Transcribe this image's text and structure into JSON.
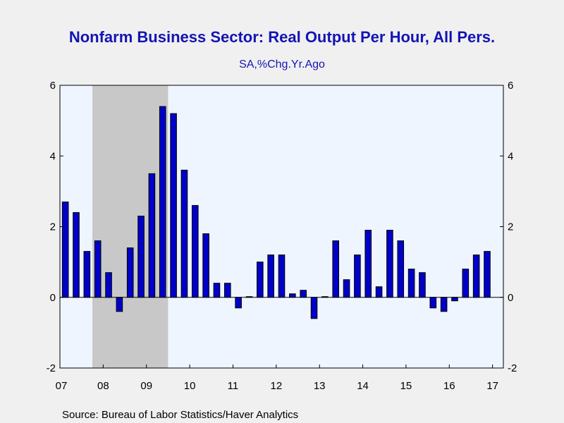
{
  "chart_data": {
    "type": "bar",
    "title": "Nonfarm Business Sector: Real Output Per Hour, All Pers.",
    "subtitle": "SA,%Chg.Yr.Ago",
    "source": "Source:  Bureau of Labor Statistics/Haver Analytics",
    "x_tick_labels": [
      "07",
      "08",
      "09",
      "10",
      "11",
      "12",
      "13",
      "14",
      "15",
      "16",
      "17"
    ],
    "y_tick_labels": [
      "6",
      "4",
      "2",
      "0",
      "-2"
    ],
    "y_ticks": [
      6,
      4,
      2,
      0,
      -2
    ],
    "ylim": [
      -2,
      6
    ],
    "recession_shading": {
      "start": "2007-Q4",
      "end": "2009-Q2"
    },
    "categories": [
      "2007-Q1",
      "2007-Q2",
      "2007-Q3",
      "2007-Q4",
      "2008-Q1",
      "2008-Q2",
      "2008-Q3",
      "2008-Q4",
      "2009-Q1",
      "2009-Q2",
      "2009-Q3",
      "2009-Q4",
      "2010-Q1",
      "2010-Q2",
      "2010-Q3",
      "2010-Q4",
      "2011-Q1",
      "2011-Q2",
      "2011-Q3",
      "2011-Q4",
      "2012-Q1",
      "2012-Q2",
      "2012-Q3",
      "2012-Q4",
      "2013-Q1",
      "2013-Q2",
      "2013-Q3",
      "2013-Q4",
      "2014-Q1",
      "2014-Q2",
      "2014-Q3",
      "2014-Q4",
      "2015-Q1",
      "2015-Q2",
      "2015-Q3",
      "2015-Q4",
      "2016-Q1",
      "2016-Q2",
      "2016-Q3",
      "2016-Q4",
      "2017-Q1"
    ],
    "values": [
      2.7,
      2.4,
      1.3,
      1.6,
      0.7,
      -0.4,
      1.4,
      2.3,
      3.5,
      5.4,
      5.2,
      3.6,
      2.6,
      1.8,
      0.4,
      0.4,
      -0.3,
      0.02,
      1.0,
      1.2,
      1.2,
      0.1,
      0.2,
      -0.6,
      0.02,
      1.6,
      0.5,
      1.2,
      1.9,
      0.3,
      1.9,
      1.6,
      0.8,
      0.7,
      -0.3,
      -0.4,
      -0.1,
      0.8,
      1.2,
      1.3,
      0.0
    ],
    "colors": {
      "bar_fill": "#0000c8",
      "bar_stroke": "#000000",
      "recession": "#c8c8c8",
      "plot_bg": "#eef5ff",
      "title": "#1414b4"
    },
    "grid": false,
    "legend": "none"
  }
}
